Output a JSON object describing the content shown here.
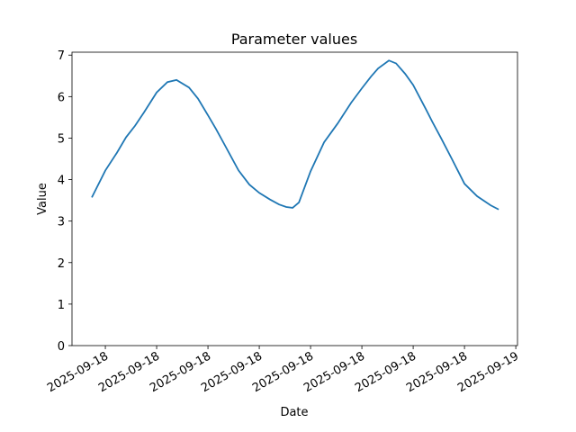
{
  "chart_data": {
    "type": "line",
    "title": "Parameter values",
    "x_label": "Date",
    "y_label": "Value",
    "x": [
      -0.79,
      0,
      0.68,
      1.21,
      1.74,
      2.26,
      3.0,
      3.63,
      4.16,
      4.89,
      5.42,
      6.0,
      6.47,
      7.0,
      7.79,
      8.42,
      9.0,
      9.63,
      10.16,
      10.58,
      10.95,
      11.32,
      12.0,
      12.79,
      13.58,
      14.37,
      15.0,
      15.53,
      15.95,
      16.58,
      17.0,
      17.53,
      18.0,
      18.74,
      19.11,
      19.63,
      20.26,
      21.0,
      21.74,
      22.53,
      23.0
    ],
    "series": [
      {
        "name": "Value",
        "color": "#1f77b4",
        "values": [
          3.57,
          4.22,
          4.65,
          5.02,
          5.3,
          5.62,
          6.1,
          6.35,
          6.4,
          6.22,
          5.95,
          5.55,
          5.22,
          4.82,
          4.22,
          3.88,
          3.68,
          3.52,
          3.4,
          3.34,
          3.32,
          3.45,
          4.2,
          4.9,
          5.35,
          5.85,
          6.2,
          6.48,
          6.68,
          6.87,
          6.8,
          6.55,
          6.28,
          5.7,
          5.4,
          5.0,
          4.5,
          3.9,
          3.6,
          3.38,
          3.28
        ]
      }
    ],
    "xlim": [
      -1.95,
      24.1
    ],
    "ylim": [
      0,
      7.07
    ],
    "xticks": [
      {
        "value": 0,
        "label": "2025-09-18"
      },
      {
        "value": 3,
        "label": "2025-09-18"
      },
      {
        "value": 6,
        "label": "2025-09-18"
      },
      {
        "value": 9,
        "label": "2025-09-18"
      },
      {
        "value": 12,
        "label": "2025-09-18"
      },
      {
        "value": 15,
        "label": "2025-09-18"
      },
      {
        "value": 18,
        "label": "2025-09-18"
      },
      {
        "value": 21,
        "label": "2025-09-18"
      },
      {
        "value": 24,
        "label": "2025-09-19"
      }
    ],
    "yticks": [
      0,
      1,
      2,
      3,
      4,
      5,
      6,
      7
    ]
  }
}
